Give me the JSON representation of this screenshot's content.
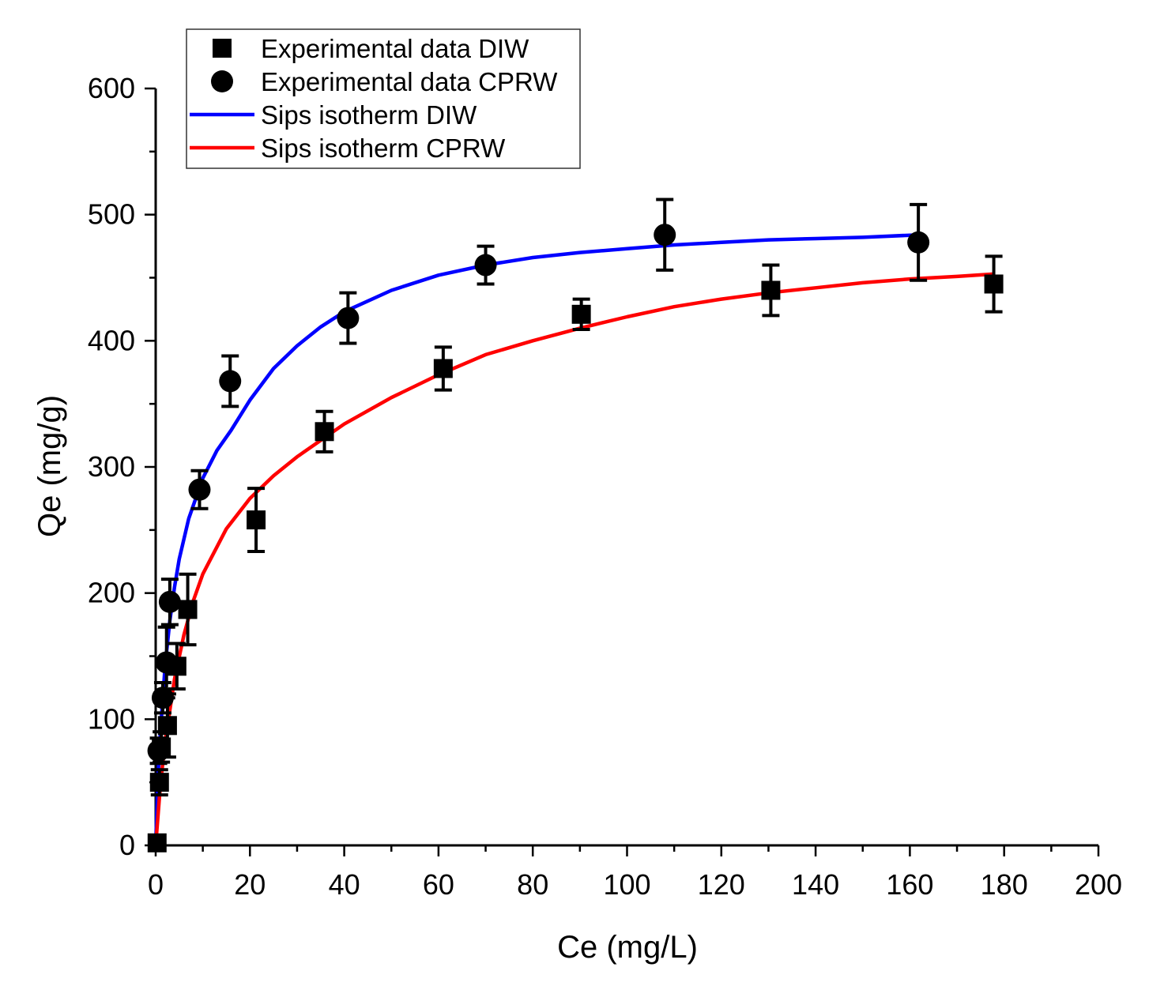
{
  "chart_data": {
    "type": "scatter",
    "xlabel": "Ce (mg/L)",
    "ylabel": "Qe (mg/g)",
    "xlim": [
      0,
      200
    ],
    "ylim": [
      0,
      600
    ],
    "xticks": [
      0,
      20,
      40,
      60,
      80,
      100,
      120,
      140,
      160,
      180,
      200
    ],
    "yticks": [
      0,
      100,
      200,
      300,
      400,
      500,
      600
    ],
    "grid": false,
    "legend_position": "top-left",
    "series": [
      {
        "name": "Experimental data DIW",
        "kind": "points",
        "marker": "square",
        "color": "#000000",
        "points": [
          {
            "x": 0.3,
            "y": 2,
            "err": 4
          },
          {
            "x": 0.8,
            "y": 50,
            "err": 10
          },
          {
            "x": 1.2,
            "y": 78,
            "err": 12
          },
          {
            "x": 2.5,
            "y": 95,
            "err": 25
          },
          {
            "x": 4.5,
            "y": 142,
            "err": 18
          },
          {
            "x": 6.8,
            "y": 187,
            "err": 28
          },
          {
            "x": 21.3,
            "y": 258,
            "err": 25
          },
          {
            "x": 35.8,
            "y": 328,
            "err": 16
          },
          {
            "x": 61.0,
            "y": 378,
            "err": 17
          },
          {
            "x": 90.3,
            "y": 421,
            "err": 12
          },
          {
            "x": 130.5,
            "y": 440,
            "err": 20
          },
          {
            "x": 177.8,
            "y": 445,
            "err": 22
          }
        ]
      },
      {
        "name": "Experimental data CPRW",
        "kind": "points",
        "marker": "circle",
        "color": "#000000",
        "points": [
          {
            "x": 0.6,
            "y": 75,
            "err": 10
          },
          {
            "x": 1.5,
            "y": 117,
            "err": 12
          },
          {
            "x": 2.3,
            "y": 145,
            "err": 28
          },
          {
            "x": 3.0,
            "y": 193,
            "err": 18
          },
          {
            "x": 9.3,
            "y": 282,
            "err": 15
          },
          {
            "x": 15.8,
            "y": 368,
            "err": 20
          },
          {
            "x": 40.8,
            "y": 418,
            "err": 20
          },
          {
            "x": 70.0,
            "y": 460,
            "err": 15
          },
          {
            "x": 108.0,
            "y": 484,
            "err": 28
          },
          {
            "x": 161.8,
            "y": 478,
            "err": 30
          }
        ]
      },
      {
        "name": "Sips isotherm DIW",
        "kind": "line",
        "color": "#0000ff",
        "x": [
          0,
          0.5,
          1,
          2,
          3,
          4,
          5,
          7,
          10,
          13,
          16,
          20,
          25,
          30,
          35,
          40,
          50,
          60,
          70,
          80,
          90,
          100,
          110,
          120,
          130,
          140,
          150,
          162
        ],
        "y": [
          0,
          55,
          90,
          142,
          178,
          205,
          227,
          259,
          291,
          313,
          329,
          353,
          378,
          396,
          411,
          423,
          440,
          452,
          460,
          466,
          470,
          473,
          476,
          478,
          480,
          481,
          482,
          484
        ]
      },
      {
        "name": "Sips isotherm CPRW",
        "kind": "line",
        "color": "#ff0000",
        "x": [
          0,
          1,
          2,
          4,
          6,
          8,
          10,
          15,
          20,
          25,
          30,
          40,
          50,
          60,
          70,
          80,
          90,
          100,
          110,
          120,
          130,
          140,
          150,
          160,
          170,
          178
        ],
        "y": [
          0,
          48,
          82,
          132,
          167,
          194,
          215,
          251,
          275,
          293,
          308,
          334,
          355,
          373,
          389,
          400,
          410,
          419,
          427,
          433,
          438,
          442,
          446,
          449,
          451,
          453
        ]
      }
    ]
  }
}
